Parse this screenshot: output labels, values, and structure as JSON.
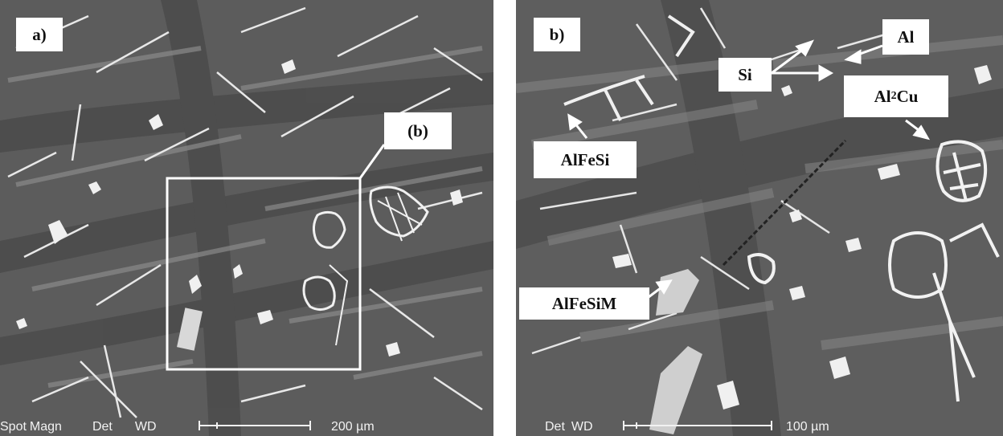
{
  "panel_a": {
    "label": "a)",
    "inset_label": "(b)",
    "footer": {
      "spot": "Spot",
      "magn": "Magn",
      "det": "Det",
      "wd": "WD",
      "scale": "200 µm"
    }
  },
  "panel_b": {
    "label": "b)",
    "phases": {
      "al": "Al",
      "si": "Si",
      "al2cu_prefix": "Al",
      "al2cu_sub": "2",
      "al2cu_suffix": "Cu",
      "alfesi": "AlFeSi",
      "alfesim": "AlFeSiM"
    },
    "footer": {
      "det": "Det",
      "wd": "WD",
      "scale": "100 µm"
    }
  },
  "colors": {
    "matrix": "#5a5a5a",
    "eutectic": "#8c8c8c",
    "intermetallic": "#f2f2f2",
    "label_bg": "#ffffff"
  }
}
